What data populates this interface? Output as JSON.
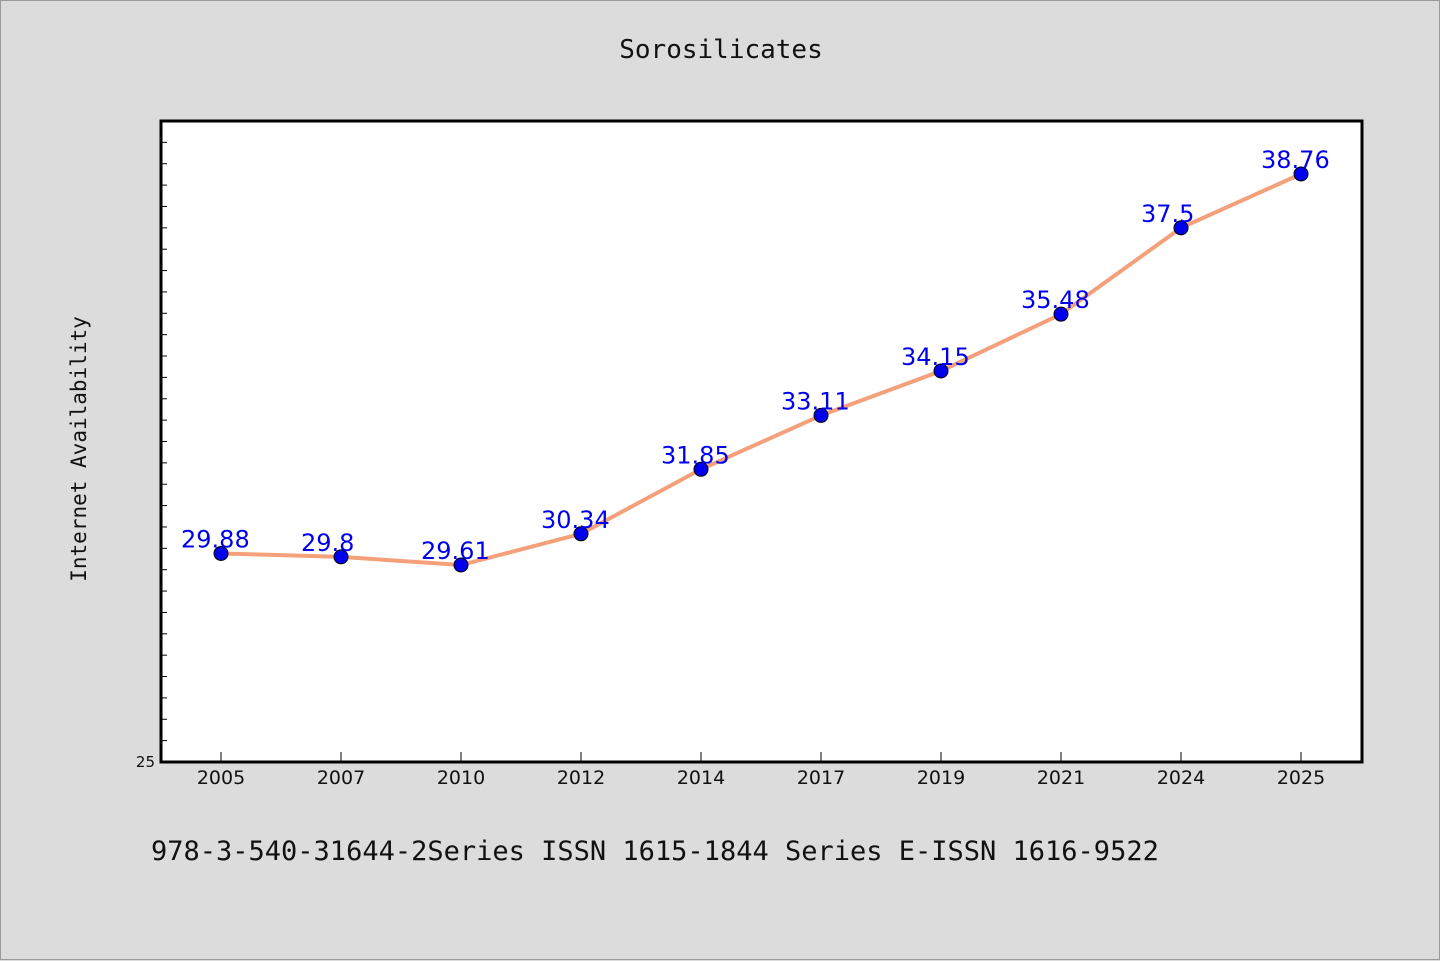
{
  "chart_data": {
    "type": "line",
    "title": "Sorosilicates",
    "xlabel": "",
    "ylabel": "Internet Availability",
    "categories": [
      "2005",
      "2007",
      "2010",
      "2012",
      "2014",
      "2017",
      "2019",
      "2021",
      "2024",
      "2025"
    ],
    "series": [
      {
        "values": [
          29.88,
          29.8,
          29.61,
          30.34,
          31.85,
          33.11,
          34.15,
          35.48,
          37.5,
          38.76
        ]
      }
    ],
    "y_tick_labels": [
      "25"
    ],
    "ylim": [
      25,
      40
    ],
    "grid": false,
    "legend": "none",
    "data_labels": [
      "29.88",
      "29.8",
      "29.61",
      "30.34",
      "31.85",
      "33.11",
      "34.15",
      "35.48",
      "37.5",
      "38.76"
    ]
  },
  "footer": "978-3-540-31644-2Series ISSN 1615-1844 Series E-ISSN 1616-9522",
  "colors": {
    "background": "#dcdcdc",
    "plot_background": "#ffffff",
    "line": "#f4a07a",
    "marker": "#0000ee",
    "data_label": "#0000ee"
  }
}
